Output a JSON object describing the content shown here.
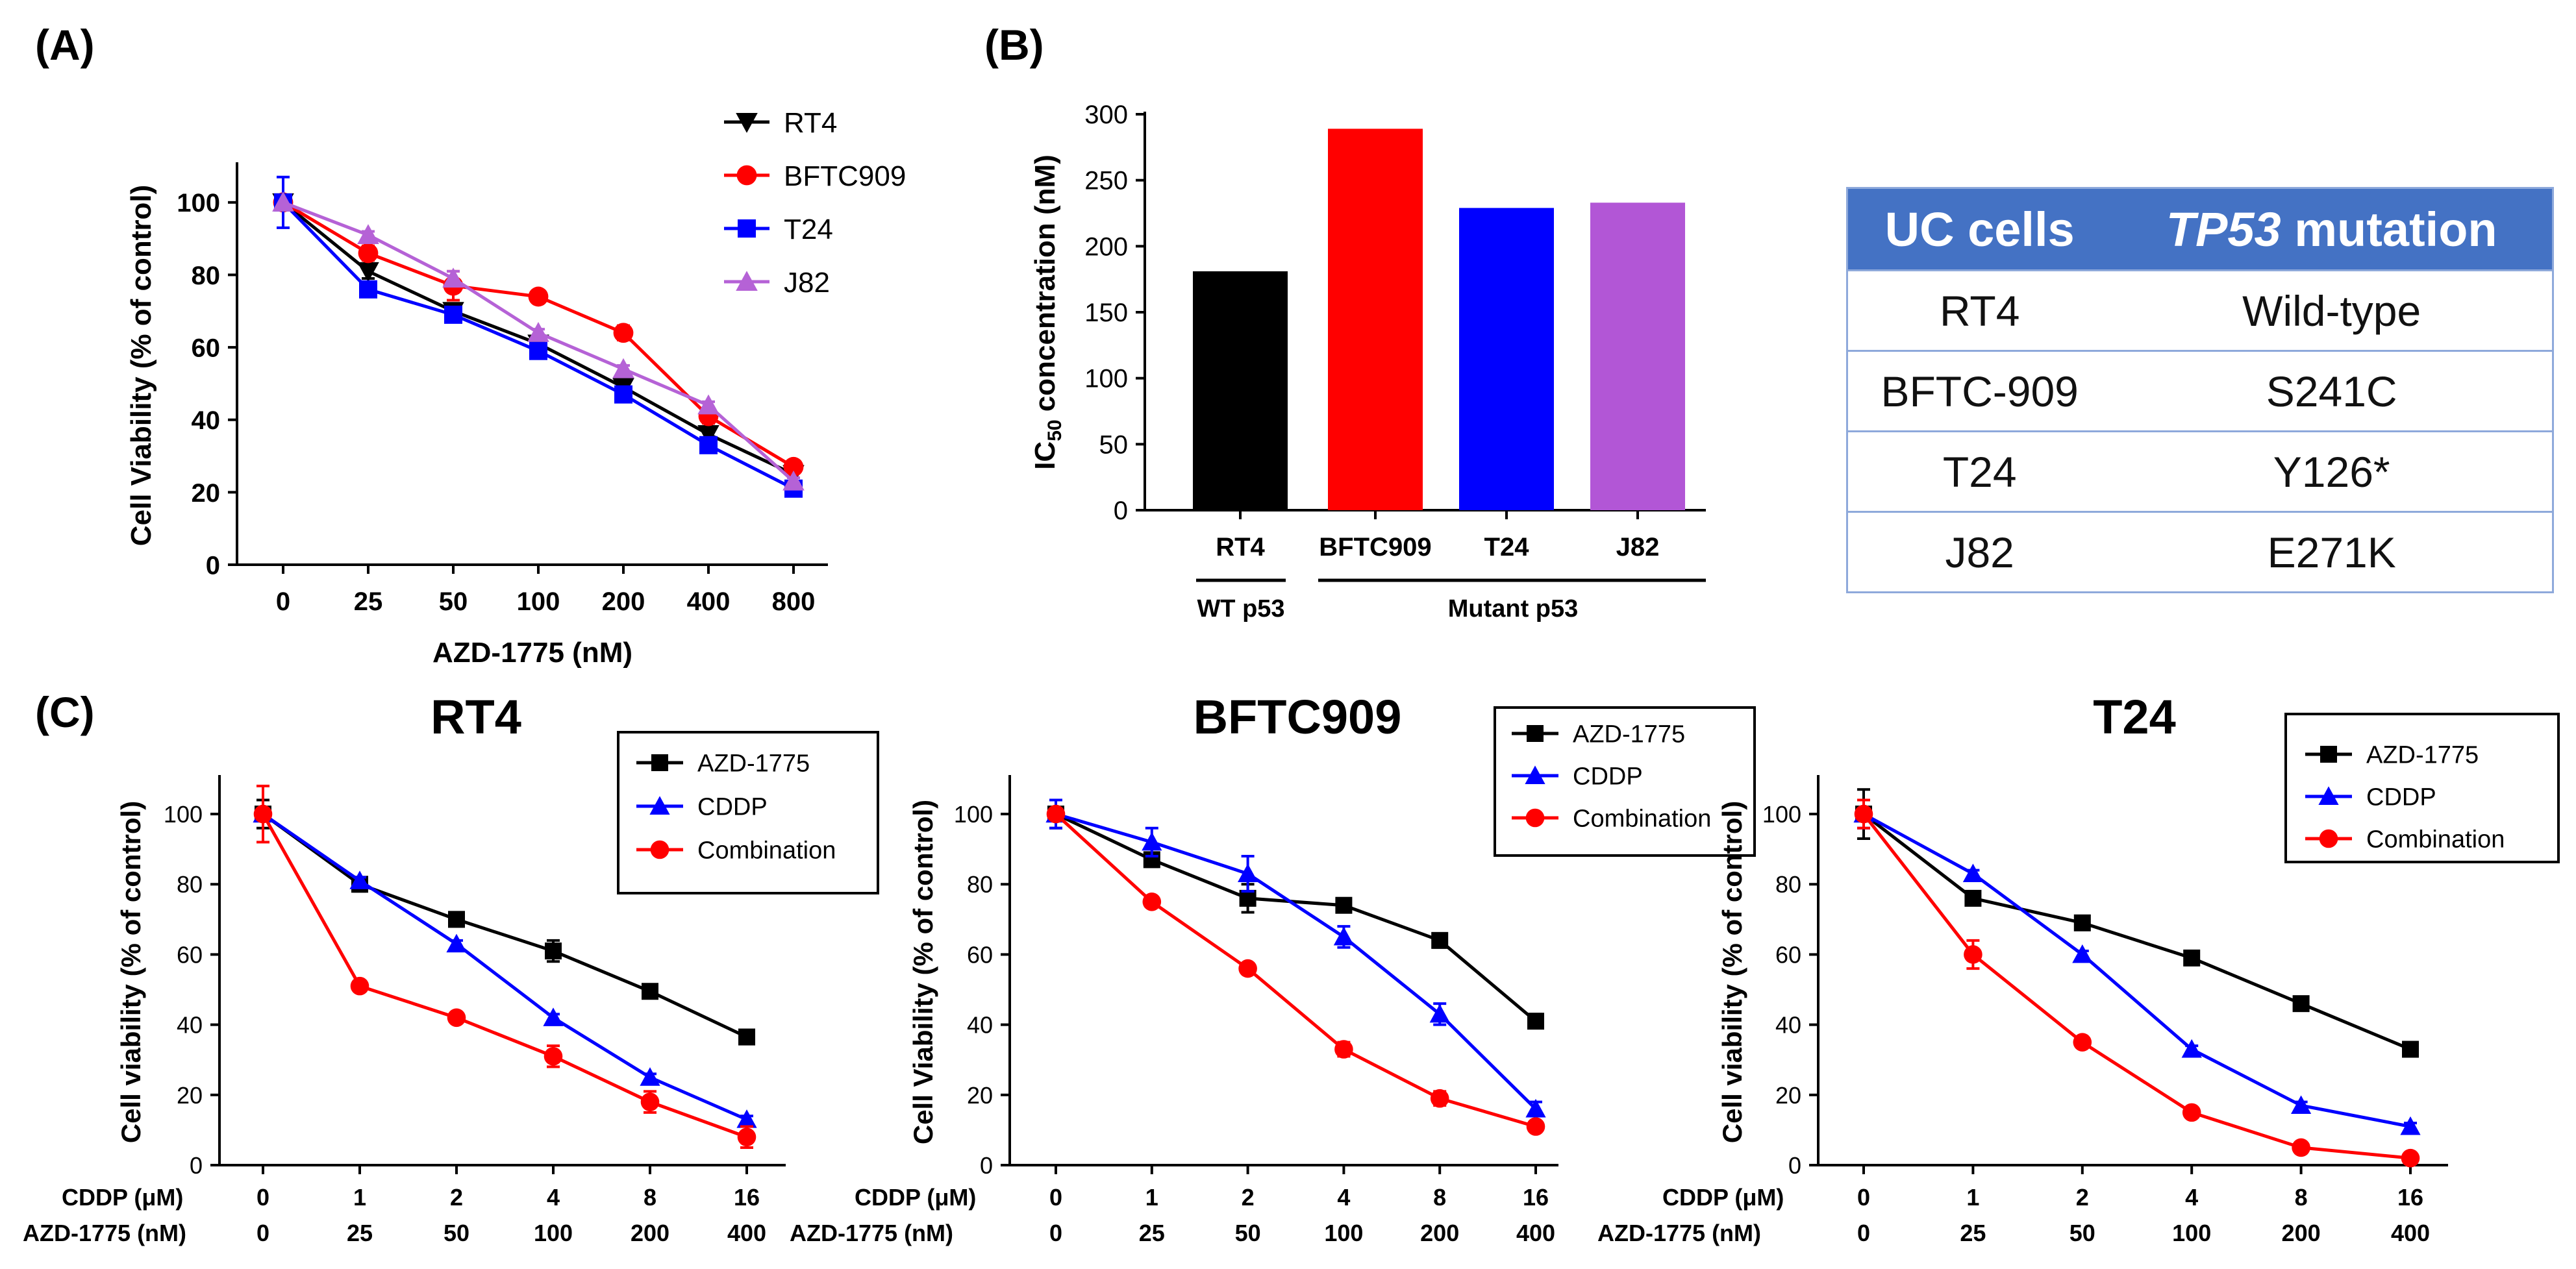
{
  "panels": {
    "A": {
      "letter": "(A)",
      "chart_data": {
        "type": "line",
        "title": "",
        "xlabel": "AZD-1775 (nM)",
        "ylabel": "Cell Viability (% of control)",
        "categories": [
          "0",
          "25",
          "50",
          "100",
          "200",
          "400",
          "800"
        ],
        "ylim": [
          0,
          110
        ],
        "yticks": [
          0,
          20,
          40,
          60,
          80,
          100
        ],
        "legend_position": "top-right",
        "series": [
          {
            "name": "RT4",
            "color": "#000000",
            "marker": "triangle-down",
            "values": [
              100,
              81,
              70,
              61,
              49,
              36,
              25
            ],
            "errors": [
              0,
              2,
              2,
              1,
              2,
              2,
              1
            ]
          },
          {
            "name": "BFTC909",
            "color": "#ff0000",
            "marker": "circle",
            "values": [
              100,
              86,
              77,
              74,
              64,
              41,
              27
            ],
            "errors": [
              0,
              2,
              4,
              1,
              2,
              2,
              1
            ]
          },
          {
            "name": "T24",
            "color": "#0000ff",
            "marker": "square",
            "values": [
              100,
              76,
              69,
              59,
              47,
              33,
              21
            ],
            "errors": [
              7,
              2,
              2,
              2,
              2,
              2,
              2
            ]
          },
          {
            "name": "J82",
            "color": "#b562d6",
            "marker": "triangle-up",
            "values": [
              100,
              91,
              79,
              64,
              54,
              44,
              23
            ],
            "errors": [
              0,
              1,
              2,
              1,
              1,
              1,
              1
            ]
          }
        ]
      }
    },
    "B": {
      "letter": "(B)",
      "chart_data": {
        "type": "bar",
        "title": "",
        "ylabel_main": "IC",
        "ylabel_sub": "50",
        "ylabel_rest": " concentration (nM)",
        "categories": [
          "RT4",
          "BFTC909",
          "T24",
          "J82"
        ],
        "values": [
          181,
          289,
          229,
          233
        ],
        "colors": [
          "#000000",
          "#ff0000",
          "#0000ff",
          "#b256d6"
        ],
        "ylim": [
          0,
          300
        ],
        "yticks": [
          0,
          50,
          100,
          150,
          200,
          250,
          300
        ],
        "groups": [
          {
            "label": "WT p53",
            "members": [
              "RT4"
            ]
          },
          {
            "label": "Mutant p53",
            "members": [
              "BFTC909",
              "T24",
              "J82"
            ]
          }
        ]
      }
    },
    "table": {
      "headers": {
        "col1": "UC cells",
        "col2_italic": "TP53",
        "col2_rest": " mutation"
      },
      "rows": [
        {
          "cell": "RT4",
          "mutation": "Wild-type"
        },
        {
          "cell": "BFTC-909",
          "mutation": "S241C"
        },
        {
          "cell": "T24",
          "mutation": "Y126*"
        },
        {
          "cell": "J82",
          "mutation": "E271K"
        }
      ]
    },
    "C": {
      "letter": "(C)",
      "xrow_labels": {
        "cddp": "CDDP (μM)",
        "azd": "AZD-1775 (nM)"
      },
      "cddp_ticks": [
        "0",
        "1",
        "2",
        "4",
        "8",
        "16"
      ],
      "azd_ticks": [
        "0",
        "25",
        "50",
        "100",
        "200",
        "400"
      ],
      "chart_data": [
        {
          "type": "line",
          "title": "RT4",
          "ylabel": "Cell viability (% of control)",
          "ylim": [
            0,
            110
          ],
          "yticks": [
            0,
            20,
            40,
            60,
            80,
            100
          ],
          "legend_position": "top-right",
          "series": [
            {
              "name": "AZD-1775",
              "color": "#000000",
              "marker": "square",
              "values": [
                100,
                80,
                70,
                61,
                49.5,
                36.5
              ],
              "errors": [
                4,
                2,
                2,
                3,
                1,
                1
              ]
            },
            {
              "name": "CDDP",
              "color": "#0000ff",
              "marker": "triangle-up",
              "values": [
                100,
                81,
                63,
                42,
                25,
                13
              ],
              "errors": [
                0,
                1,
                1,
                1,
                1,
                1
              ]
            },
            {
              "name": "Combination",
              "color": "#ff0000",
              "marker": "circle",
              "values": [
                100,
                51,
                42,
                31,
                18,
                8
              ],
              "errors": [
                8,
                1,
                1,
                3,
                3,
                3
              ]
            }
          ]
        },
        {
          "type": "line",
          "title": "BFTC909",
          "ylabel": "Cell Viability (% of control)",
          "ylim": [
            0,
            110
          ],
          "yticks": [
            0,
            20,
            40,
            60,
            80,
            100
          ],
          "legend_position": "top-right",
          "series": [
            {
              "name": "AZD-1775",
              "color": "#000000",
              "marker": "square",
              "values": [
                100,
                87,
                76,
                74,
                64,
                41
              ],
              "errors": [
                4,
                2,
                4,
                1,
                2,
                2
              ]
            },
            {
              "name": "CDDP",
              "color": "#0000ff",
              "marker": "triangle-up",
              "values": [
                100,
                92,
                83,
                65,
                43,
                16
              ],
              "errors": [
                4,
                4,
                5,
                3,
                3,
                2
              ]
            },
            {
              "name": "Combination",
              "color": "#ff0000",
              "marker": "circle",
              "values": [
                100,
                75,
                56,
                33,
                19,
                11
              ],
              "errors": [
                0,
                1,
                1,
                2,
                2,
                1
              ]
            }
          ]
        },
        {
          "type": "line",
          "title": "T24",
          "ylabel": "Cell viability (% of control)",
          "ylim": [
            0,
            110
          ],
          "yticks": [
            0,
            20,
            40,
            60,
            80,
            100
          ],
          "legend_position": "top-right",
          "series": [
            {
              "name": "AZD-1775",
              "color": "#000000",
              "marker": "square",
              "values": [
                100,
                76,
                69,
                59,
                46,
                33
              ],
              "errors": [
                7,
                1,
                1,
                2,
                1,
                1
              ]
            },
            {
              "name": "CDDP",
              "color": "#0000ff",
              "marker": "triangle-up",
              "values": [
                100,
                83,
                60,
                33,
                17,
                11
              ],
              "errors": [
                4,
                1,
                1,
                1,
                1,
                1
              ]
            },
            {
              "name": "Combination",
              "color": "#ff0000",
              "marker": "circle",
              "values": [
                100,
                60,
                35,
                15,
                5,
                2
              ],
              "errors": [
                4,
                4,
                1,
                1,
                1,
                1
              ]
            }
          ]
        }
      ]
    }
  }
}
